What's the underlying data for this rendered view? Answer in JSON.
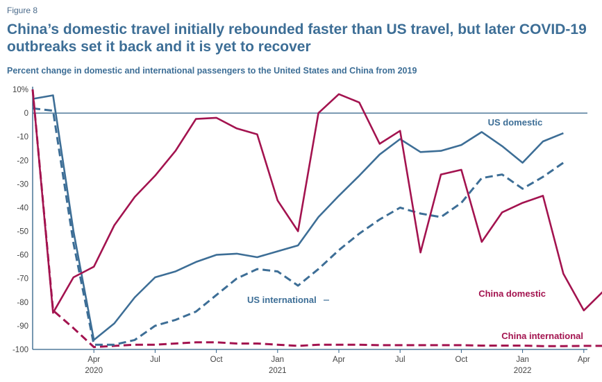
{
  "figure_label": "Figure 8",
  "title": "China’s domestic travel initially rebounded faster than US travel, but later COVID-19 outbreaks set it back and it is yet to recover",
  "subtitle": "Percent change in domestic and international passengers to the United States and China from 2019",
  "colors": {
    "us": "#3d6e96",
    "china": "#a3134f",
    "axis": "#2d5f86",
    "tick": "#444444"
  },
  "chart_data": {
    "type": "line",
    "title": "China’s domestic travel initially rebounded faster than US travel, but later COVID-19 outbreaks set it back and it is yet to recover",
    "ylabel": "",
    "xlabel": "",
    "ylim": [
      -100,
      10
    ],
    "yticks": [
      "10%",
      "0",
      "-10",
      "-20",
      "-30",
      "-40",
      "-50",
      "-60",
      "-70",
      "-80",
      "-90",
      "-100"
    ],
    "x_tick_labels": [
      {
        "label": "Apr",
        "year": "2020"
      },
      {
        "label": "Jul",
        "year": ""
      },
      {
        "label": "Oct",
        "year": ""
      },
      {
        "label": "Jan",
        "year": "2021"
      },
      {
        "label": "Apr",
        "year": ""
      },
      {
        "label": "Jul",
        "year": ""
      },
      {
        "label": "Oct",
        "year": ""
      },
      {
        "label": "Jan",
        "year": "2022"
      },
      {
        "label": "Apr",
        "year": ""
      }
    ],
    "x": [
      "2020-01",
      "2020-02",
      "2020-03",
      "2020-04",
      "2020-05",
      "2020-06",
      "2020-07",
      "2020-08",
      "2020-09",
      "2020-10",
      "2020-11",
      "2020-12",
      "2021-01",
      "2021-02",
      "2021-03",
      "2021-04",
      "2021-05",
      "2021-06",
      "2021-07",
      "2021-08",
      "2021-09",
      "2021-10",
      "2021-11",
      "2021-12",
      "2022-01",
      "2022-02",
      "2022-03",
      "2022-04",
      "2022-05",
      "2022-06"
    ],
    "series": [
      {
        "name": "US domestic",
        "style": "solid",
        "color": "#3d6e96",
        "values": [
          6,
          7.5,
          -50,
          -96,
          -89,
          -78,
          -69.5,
          -67,
          -63,
          -60,
          -59.5,
          -61,
          -58.5,
          -56,
          -44,
          -35,
          -26.5,
          -17.5,
          -11,
          -16.5,
          -16,
          -13.5,
          -8,
          -14,
          -21,
          -12,
          -8.5,
          null,
          null,
          null
        ]
      },
      {
        "name": "US international",
        "style": "dashed",
        "color": "#3d6e96",
        "values": [
          2,
          1,
          -55,
          -98,
          -98,
          -96,
          -90,
          -87.5,
          -84,
          -77,
          -70,
          -66,
          -67,
          -73,
          -66,
          -58,
          -51,
          -45,
          -40,
          -42.5,
          -44,
          -38,
          -27.5,
          -26,
          -32,
          -27,
          -21,
          null,
          null,
          null
        ]
      },
      {
        "name": "China domestic",
        "style": "solid",
        "color": "#a3134f",
        "values": [
          10,
          -84.5,
          -69.5,
          -65,
          -47.5,
          -35.5,
          -26.5,
          -16,
          -2.5,
          -2,
          -6.5,
          -9,
          -37,
          -50,
          0,
          8,
          4.5,
          -13,
          -7.5,
          -59,
          -26,
          -24,
          -54.5,
          -42,
          -38,
          -35,
          -68,
          -83.5,
          -75,
          null
        ]
      },
      {
        "name": "China international",
        "style": "dashed",
        "color": "#a3134f",
        "values": [
          10,
          -83.5,
          -91,
          -99,
          -98.5,
          -98,
          -98,
          -97.5,
          -97,
          -97,
          -97.5,
          -97.5,
          -98,
          -98.5,
          -98,
          -98,
          -98,
          -98.2,
          -98.2,
          -98.2,
          -98.2,
          -98.2,
          -98.4,
          -98.4,
          -98.4,
          -98.6,
          -98.6,
          -98.5,
          -98.5,
          -98.5
        ]
      }
    ],
    "annotations": [
      {
        "text": "US domestic",
        "series": "US domestic"
      },
      {
        "text": "US international",
        "series": "US international"
      },
      {
        "text": "China domestic",
        "series": "China domestic"
      },
      {
        "text": "China international",
        "series": "China international"
      }
    ],
    "legend": "inline labels",
    "grid": false
  }
}
